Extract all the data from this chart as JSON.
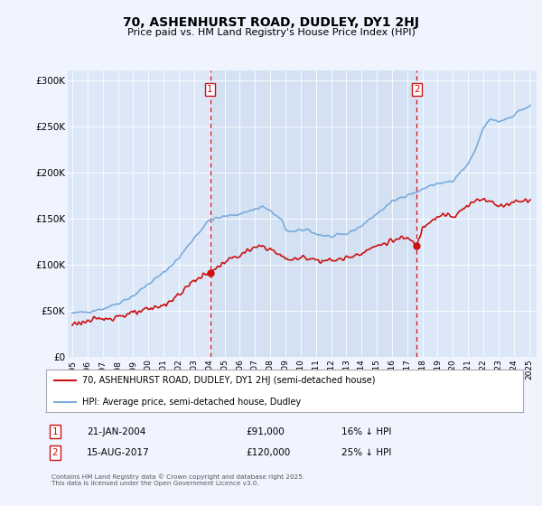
{
  "title": "70, ASHENHURST ROAD, DUDLEY, DY1 2HJ",
  "subtitle": "Price paid vs. HM Land Registry's House Price Index (HPI)",
  "background_color": "#f0f4ff",
  "plot_bg_color": "#dce8f8",
  "shaded_region_color": "#d0e0f5",
  "ylim": [
    0,
    310000
  ],
  "yticks": [
    0,
    50000,
    100000,
    150000,
    200000,
    250000,
    300000
  ],
  "ytick_labels": [
    "£0",
    "£50K",
    "£100K",
    "£150K",
    "£200K",
    "£250K",
    "£300K"
  ],
  "xlim_start": 1994.7,
  "xlim_end": 2025.5,
  "xtick_years": [
    1995,
    1996,
    1997,
    1998,
    1999,
    2000,
    2001,
    2002,
    2003,
    2004,
    2005,
    2006,
    2007,
    2008,
    2009,
    2010,
    2011,
    2012,
    2013,
    2014,
    2015,
    2016,
    2017,
    2018,
    2019,
    2020,
    2021,
    2022,
    2023,
    2024,
    2025
  ],
  "hpi_color": "#7aabdb",
  "price_color": "#cc1111",
  "marker1_x": 2004.05,
  "marker1_label": "1",
  "marker1_date": "21-JAN-2004",
  "marker1_price": "£91,000",
  "marker1_hpi": "16% ↓ HPI",
  "marker1_price_val": 91000,
  "marker2_x": 2017.62,
  "marker2_label": "2",
  "marker2_date": "15-AUG-2017",
  "marker2_price": "£120,000",
  "marker2_hpi": "25% ↓ HPI",
  "marker2_price_val": 120000,
  "legend_line1": "70, ASHENHURST ROAD, DUDLEY, DY1 2HJ (semi-detached house)",
  "legend_line2": "HPI: Average price, semi-detached house, Dudley",
  "footnote": "Contains HM Land Registry data © Crown copyright and database right 2025.\nThis data is licensed under the Open Government Licence v3.0."
}
